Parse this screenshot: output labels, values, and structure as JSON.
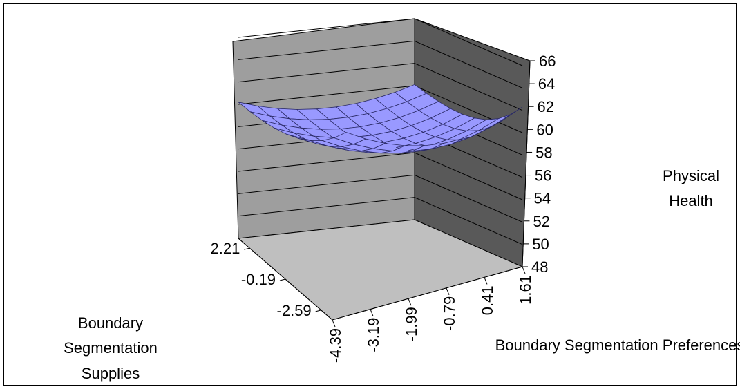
{
  "chart_data": {
    "type": "surface-3d",
    "title": "",
    "z_axis": {
      "label": [
        "Physical",
        "Health"
      ],
      "ticks": [
        "66",
        "64",
        "62",
        "60",
        "58",
        "56",
        "54",
        "52",
        "50",
        "48"
      ],
      "range": [
        48,
        66
      ]
    },
    "x_axis": {
      "label": "Boundary Segmentation Preferences",
      "ticks": [
        "-4.39",
        "-3.19",
        "-1.99",
        "-0.79",
        "0.41",
        "1.61"
      ],
      "range": [
        -4.39,
        1.61
      ]
    },
    "y_axis": {
      "label": [
        "Boundary",
        "Segmentation",
        "Supplies"
      ],
      "ticks": [
        "2.21",
        "-0.19",
        "-2.59"
      ],
      "range": [
        -2.59,
        2.21
      ]
    },
    "surface": {
      "shape": "bowl",
      "min_value": 57.5,
      "corner_values": {
        "back_left": 60.2,
        "back_right": 61.7,
        "front_left": 60.1,
        "front_right": 62.3
      }
    },
    "colors": {
      "surface": "#9999ff",
      "surface_line": "#2a2a66",
      "back_wall": "#9e9e9e",
      "side_wall": "#595959",
      "floor": "#bfbfbf",
      "gridline": "#000000"
    },
    "grid": true
  }
}
